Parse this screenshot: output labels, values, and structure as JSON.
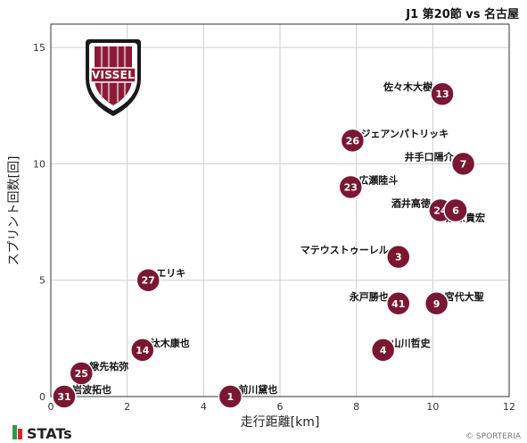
{
  "header": {
    "title": "J1 第20節 vs 名古屋"
  },
  "crest": {
    "text": "VISSEL",
    "colors": {
      "crimson": "#8b1a36",
      "dark": "#1a1a1a",
      "white": "#ffffff"
    }
  },
  "footer": {
    "brand": "STATs",
    "copyright": "© SPORTERIA"
  },
  "colors": {
    "point": "#7a1733",
    "point_stroke": "#ffffff",
    "grid": "#cfcfcf",
    "axis": "#333333",
    "stats_green": "#2e9a49",
    "stats_red": "#d8262d"
  },
  "chart_data": {
    "type": "scatter",
    "xlabel": "走行距離[km]",
    "ylabel": "スプリント回数[回]",
    "xlim": [
      0,
      12
    ],
    "ylim": [
      0,
      16
    ],
    "xticks": [
      0,
      2,
      4,
      6,
      8,
      10,
      12
    ],
    "yticks": [
      0,
      5,
      10,
      15
    ],
    "grid": true,
    "points": [
      {
        "number": "13",
        "name": "佐々木大樹",
        "x": 10.25,
        "y": 13
      },
      {
        "number": "26",
        "name": "ジェアンパトリッキ",
        "x": 7.9,
        "y": 11
      },
      {
        "number": "7",
        "name": "井手口陽介",
        "x": 10.8,
        "y": 10
      },
      {
        "number": "23",
        "name": "広瀬陸斗",
        "x": 7.85,
        "y": 9
      },
      {
        "number": "24",
        "name": "酒井高徳",
        "x": 10.2,
        "y": 8
      },
      {
        "number": "6",
        "name": "扇原貴宏",
        "x": 10.6,
        "y": 8
      },
      {
        "number": "3",
        "name": "マテウストゥーレル",
        "x": 9.1,
        "y": 6
      },
      {
        "number": "27",
        "name": "エリキ",
        "x": 2.55,
        "y": 5
      },
      {
        "number": "41",
        "name": "永戸勝也",
        "x": 9.1,
        "y": 4
      },
      {
        "number": "9",
        "name": "宮代大聖",
        "x": 10.1,
        "y": 4
      },
      {
        "number": "4",
        "name": "山川哲史",
        "x": 8.7,
        "y": 2
      },
      {
        "number": "14",
        "name": "汰木康也",
        "x": 2.4,
        "y": 2
      },
      {
        "number": "25",
        "name": "鍬先祐弥",
        "x": 0.8,
        "y": 1
      },
      {
        "number": "31",
        "name": "岩波拓也",
        "x": 0.35,
        "y": 0
      },
      {
        "number": "1",
        "name": "前川黛也",
        "x": 4.7,
        "y": 0
      }
    ]
  }
}
